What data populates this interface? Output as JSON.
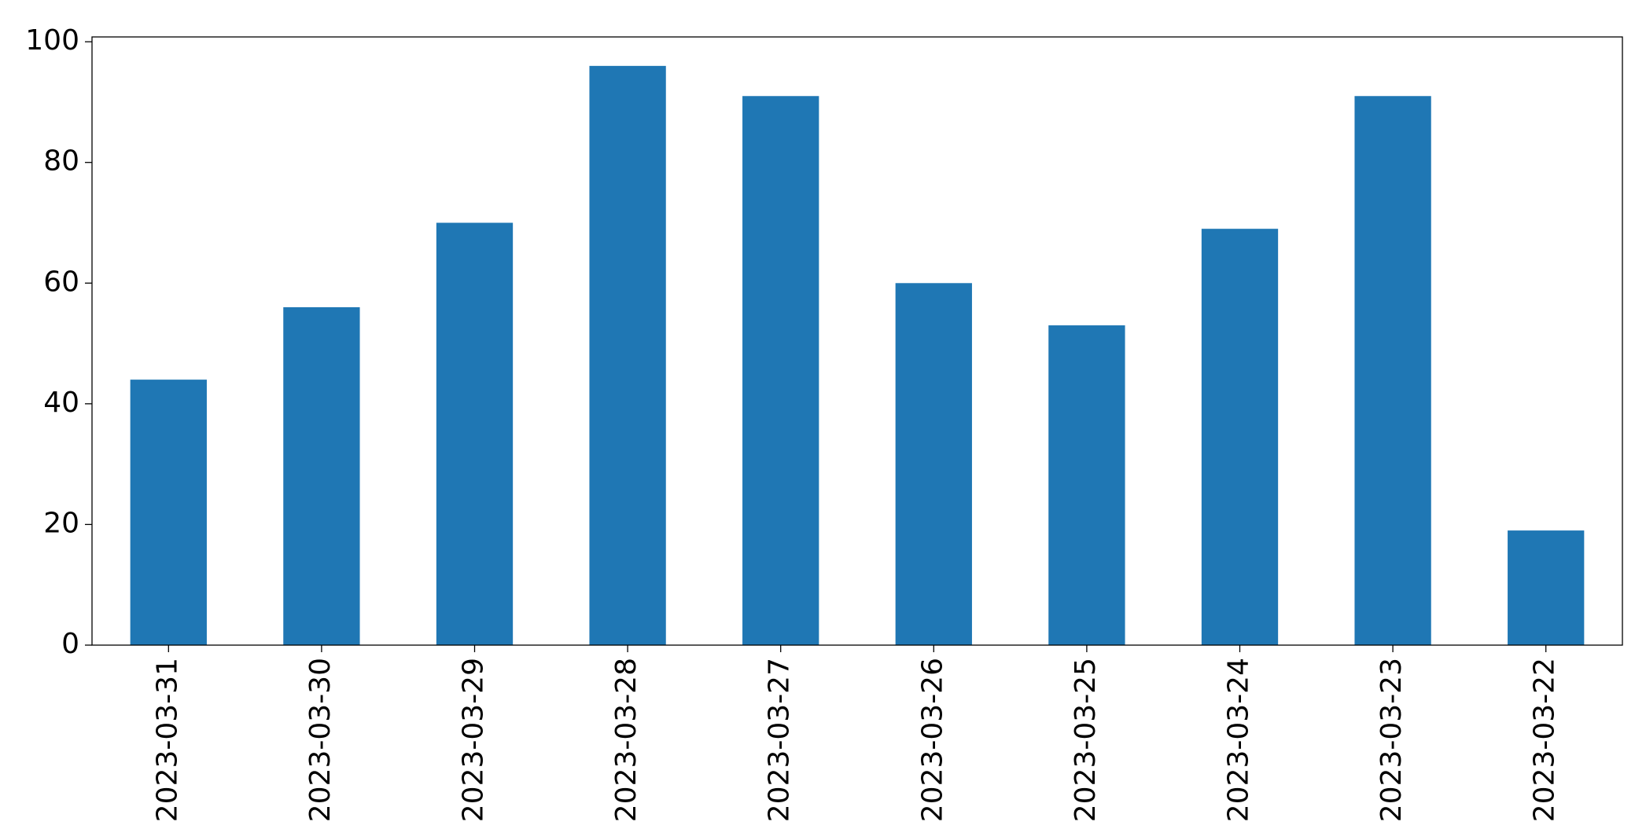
{
  "chart_data": {
    "type": "bar",
    "categories": [
      "2023-03-31",
      "2023-03-30",
      "2023-03-29",
      "2023-03-28",
      "2023-03-27",
      "2023-03-26",
      "2023-03-25",
      "2023-03-24",
      "2023-03-23",
      "2023-03-22"
    ],
    "values": [
      44,
      56,
      70,
      96,
      91,
      60,
      53,
      69,
      91,
      19
    ],
    "color": "#1f77b4",
    "ylim": [
      0,
      100.8
    ],
    "yticks": [
      0,
      20,
      40,
      60,
      80,
      100
    ],
    "grid": false
  }
}
